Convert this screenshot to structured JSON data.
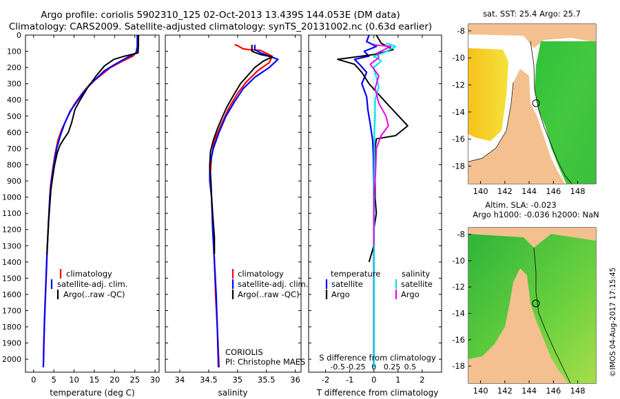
{
  "header": {
    "line1": "Argo profile: coriolis 5902310_125 02-Oct-2013 13.439S 144.053E (DM data)",
    "line2": "Climatology: CARS2009. Satellite-adjusted climatology: synTS_20131002.nc (0.63d earlier)"
  },
  "colors": {
    "climatology": "#ff0000",
    "satellite": "#0000ff",
    "argo": "#000000",
    "sal_sat": "#00e5ee",
    "sal_argo": "#ee00ee"
  },
  "chart_data": [
    {
      "type": "line",
      "id": "temperature",
      "xlabel": "temperature (deg C)",
      "ylabel": "",
      "xlim": [
        -2,
        31
      ],
      "ylim": [
        2080,
        0
      ],
      "xticks": [
        0,
        5,
        10,
        15,
        20,
        25,
        30
      ],
      "yticks": [
        0,
        100,
        200,
        300,
        400,
        500,
        600,
        700,
        800,
        900,
        1000,
        1100,
        1200,
        1300,
        1400,
        1500,
        1600,
        1700,
        1800,
        1900,
        2000
      ],
      "legend": [
        "climatology",
        "satellite-adj. clim.",
        "Argo(..raw -QC)"
      ],
      "series": [
        {
          "name": "climatology",
          "pts": [
            [
              25.8,
              0
            ],
            [
              25.8,
              60
            ],
            [
              25.6,
              100
            ],
            [
              24.5,
              130
            ],
            [
              22,
              160
            ],
            [
              19,
              200
            ],
            [
              16.5,
              250
            ],
            [
              14,
              300
            ],
            [
              12,
              360
            ],
            [
              10,
              430
            ],
            [
              8.5,
              500
            ],
            [
              7,
              580
            ],
            [
              6,
              650
            ],
            [
              5.2,
              750
            ],
            [
              4.6,
              850
            ],
            [
              4.1,
              950
            ],
            [
              3.8,
              1100
            ],
            [
              3.4,
              1300
            ],
            [
              3.1,
              1500
            ],
            [
              2.8,
              1700
            ],
            [
              2.5,
              1900
            ],
            [
              2.4,
              2050
            ]
          ]
        },
        {
          "name": "satellite",
          "pts": [
            [
              25.6,
              0
            ],
            [
              25.6,
              70
            ],
            [
              25.3,
              110
            ],
            [
              23,
              140
            ],
            [
              20.5,
              175
            ],
            [
              17.5,
              220
            ],
            [
              15,
              280
            ],
            [
              13,
              330
            ],
            [
              11,
              400
            ],
            [
              9,
              470
            ],
            [
              7.6,
              550
            ],
            [
              6.6,
              620
            ],
            [
              5.7,
              700
            ],
            [
              5,
              800
            ],
            [
              4.4,
              900
            ],
            [
              4,
              1000
            ],
            [
              3.7,
              1150
            ],
            [
              3.3,
              1350
            ],
            [
              3,
              1550
            ],
            [
              2.7,
              1750
            ],
            [
              2.5,
              1950
            ],
            [
              2.4,
              2050
            ]
          ]
        },
        {
          "name": "argo",
          "pts": [
            [
              25.9,
              0
            ],
            [
              25.9,
              60
            ],
            [
              25.8,
              110
            ],
            [
              22.5,
              130
            ],
            [
              19.8,
              150
            ],
            [
              17.5,
              190
            ],
            [
              15.5,
              250
            ],
            [
              13.2,
              330
            ],
            [
              11.5,
              400
            ],
            [
              10.2,
              460
            ],
            [
              9.4,
              540
            ],
            [
              8.6,
              600
            ],
            [
              7.5,
              640
            ],
            [
              6.5,
              680
            ],
            [
              5.8,
              730
            ],
            [
              5.2,
              800
            ],
            [
              4.7,
              880
            ],
            [
              4.3,
              950
            ],
            [
              4,
              1050
            ],
            [
              3.7,
              1150
            ],
            [
              3.5,
              1250
            ],
            [
              3.3,
              1350
            ]
          ]
        }
      ]
    },
    {
      "type": "line",
      "id": "salinity",
      "xlabel": "salinity",
      "xlim": [
        33.75,
        36.1
      ],
      "ylim": [
        2080,
        0
      ],
      "xticks": [
        34,
        34.5,
        35,
        35.5,
        36
      ],
      "legend": [
        "climatology",
        "satellite-adj. clim.",
        "Argo(..raw -QC)"
      ],
      "series": [
        {
          "name": "climatology",
          "pts": [
            [
              34.95,
              60
            ],
            [
              35.0,
              65
            ],
            [
              35.05,
              75
            ],
            [
              35.1,
              85
            ],
            [
              35.2,
              90
            ],
            [
              35.4,
              95
            ],
            [
              35.6,
              130
            ],
            [
              35.55,
              170
            ],
            [
              35.35,
              220
            ],
            [
              35.15,
              290
            ],
            [
              35.0,
              360
            ],
            [
              34.85,
              450
            ],
            [
              34.72,
              550
            ],
            [
              34.6,
              650
            ],
            [
              34.55,
              750
            ],
            [
              34.53,
              850
            ],
            [
              34.55,
              1000
            ],
            [
              34.58,
              1200
            ],
            [
              34.6,
              1400
            ],
            [
              34.62,
              1600
            ],
            [
              34.65,
              1800
            ],
            [
              34.68,
              2050
            ]
          ]
        },
        {
          "name": "satellite",
          "pts": [
            [
              35.3,
              60
            ],
            [
              35.3,
              90
            ],
            [
              35.4,
              110
            ],
            [
              35.7,
              150
            ],
            [
              35.55,
              200
            ],
            [
              35.3,
              260
            ],
            [
              35.1,
              330
            ],
            [
              34.95,
              410
            ],
            [
              34.8,
              500
            ],
            [
              34.68,
              600
            ],
            [
              34.58,
              700
            ],
            [
              34.52,
              800
            ],
            [
              34.52,
              900
            ],
            [
              34.55,
              1000
            ],
            [
              34.57,
              1200
            ],
            [
              34.6,
              1400
            ],
            [
              34.63,
              1600
            ],
            [
              34.65,
              1800
            ],
            [
              34.67,
              2050
            ]
          ]
        },
        {
          "name": "argo",
          "pts": [
            [
              35.25,
              60
            ],
            [
              35.25,
              100
            ],
            [
              35.4,
              120
            ],
            [
              35.6,
              135
            ],
            [
              35.45,
              160
            ],
            [
              35.3,
              200
            ],
            [
              35.2,
              240
            ],
            [
              35.05,
              300
            ],
            [
              34.95,
              360
            ],
            [
              34.82,
              440
            ],
            [
              34.72,
              520
            ],
            [
              34.65,
              580
            ],
            [
              34.58,
              650
            ],
            [
              34.53,
              720
            ],
            [
              34.52,
              800
            ],
            [
              34.54,
              900
            ],
            [
              34.55,
              1000
            ],
            [
              34.57,
              1100
            ],
            [
              34.6,
              1250
            ],
            [
              34.6,
              1350
            ]
          ]
        }
      ],
      "annotations": [
        "CORIOLIS",
        "PI: Christophe MAES"
      ]
    },
    {
      "type": "line",
      "id": "differences",
      "xlabel": "T difference from climatology",
      "xlabel_top": "S difference from climatology",
      "xlim": [
        -2.7,
        2.8
      ],
      "ylim": [
        2080,
        0
      ],
      "xticks": [
        -2,
        -1,
        0,
        1,
        2
      ],
      "sticks_values": [
        -0.5,
        -0.25,
        0,
        0.25,
        0.5
      ],
      "sticks_labels": [
        "-0.5",
        "-0.25",
        "0",
        "0.25",
        "0.5"
      ],
      "legend_left_title": "temperature",
      "legend_right_title": "salinity",
      "legend_left": [
        "satellite",
        "Argo"
      ],
      "legend_right": [
        "satellite",
        "Argo"
      ],
      "series": [
        {
          "name": "T satellite",
          "pts": [
            [
              -0.2,
              0
            ],
            [
              -0.3,
              40
            ],
            [
              0.1,
              70
            ],
            [
              -0.4,
              100
            ],
            [
              -0.2,
              130
            ],
            [
              -0.8,
              150
            ],
            [
              -0.6,
              180
            ],
            [
              -0.3,
              230
            ],
            [
              -0.5,
              300
            ],
            [
              -0.3,
              380
            ],
            [
              -0.25,
              460
            ],
            [
              -0.15,
              550
            ],
            [
              -0.05,
              650
            ],
            [
              -0.02,
              750
            ],
            [
              0,
              900
            ],
            [
              0,
              1100
            ],
            [
              0,
              1300
            ],
            [
              0,
              1500
            ],
            [
              0,
              1700
            ],
            [
              0,
              1900
            ],
            [
              0,
              2050
            ]
          ]
        },
        {
          "name": "T argo",
          "pts": [
            [
              0.1,
              0
            ],
            [
              0.3,
              50
            ],
            [
              0.8,
              90
            ],
            [
              0,
              120
            ],
            [
              -1.5,
              150
            ],
            [
              -0.8,
              180
            ],
            [
              -0.5,
              230
            ],
            [
              -0.2,
              300
            ],
            [
              0.4,
              400
            ],
            [
              0.9,
              480
            ],
            [
              1.4,
              560
            ],
            [
              0.9,
              620
            ],
            [
              0.1,
              640
            ],
            [
              0.05,
              700
            ],
            [
              0.05,
              800
            ],
            [
              0.05,
              900
            ],
            [
              0.05,
              1000
            ],
            [
              0.1,
              1100
            ],
            [
              0,
              1200
            ],
            [
              0,
              1300
            ],
            [
              -0.2,
              1400
            ]
          ]
        },
        {
          "name": "S satellite",
          "pts": [
            [
              0.5,
              50
            ],
            [
              0.9,
              70
            ],
            [
              0.4,
              110
            ],
            [
              0,
              130
            ],
            [
              0.3,
              160
            ],
            [
              0,
              200
            ],
            [
              0.1,
              260
            ],
            [
              0.2,
              320
            ],
            [
              0.05,
              400
            ],
            [
              0.05,
              500
            ],
            [
              0.02,
              600
            ],
            [
              0.02,
              700
            ],
            [
              0.02,
              800
            ],
            [
              0.02,
              900
            ],
            [
              0.01,
              1100
            ],
            [
              0.01,
              1300
            ],
            [
              0.01,
              1500
            ],
            [
              0.01,
              1700
            ],
            [
              0.01,
              1900
            ],
            [
              0.01,
              2050
            ]
          ]
        },
        {
          "name": "S argo",
          "pts": [
            [
              0,
              60
            ],
            [
              0.7,
              70
            ],
            [
              0.15,
              110
            ],
            [
              0.2,
              140
            ],
            [
              -0.15,
              180
            ],
            [
              0.2,
              250
            ],
            [
              0.05,
              330
            ],
            [
              0.2,
              420
            ],
            [
              0.5,
              500
            ],
            [
              0.6,
              560
            ],
            [
              0.3,
              620
            ],
            [
              0.1,
              700
            ],
            [
              0.08,
              800
            ],
            [
              0.05,
              900
            ],
            [
              0,
              1000
            ],
            [
              0,
              1100
            ],
            [
              0,
              1200
            ],
            [
              0,
              1300
            ]
          ]
        }
      ]
    }
  ],
  "maps": {
    "top": {
      "title": "sat. SST: 25.4  Argo: 25.7",
      "xticks": [
        "140",
        "142",
        "144",
        "146",
        "148"
      ],
      "yticks": [
        "-8",
        "-10",
        "-12",
        "-14",
        "-16",
        "-18"
      ]
    },
    "bottom": {
      "title1": "Altim. SLA: -0.023",
      "title2": "Argo h1000: -0.036 h2000: NaN",
      "xticks": [
        "140",
        "142",
        "144",
        "146",
        "148"
      ],
      "yticks": [
        "-8",
        "-10",
        "-12",
        "-14",
        "-16",
        "-18"
      ]
    },
    "lon_range": [
      139,
      149.5
    ],
    "lat_range": [
      -19.3,
      -7.5
    ],
    "argo_position": {
      "lon": 144.053,
      "lat": -13.439
    }
  },
  "credit": "©IMOS 04-Aug-2017 17:15:45"
}
